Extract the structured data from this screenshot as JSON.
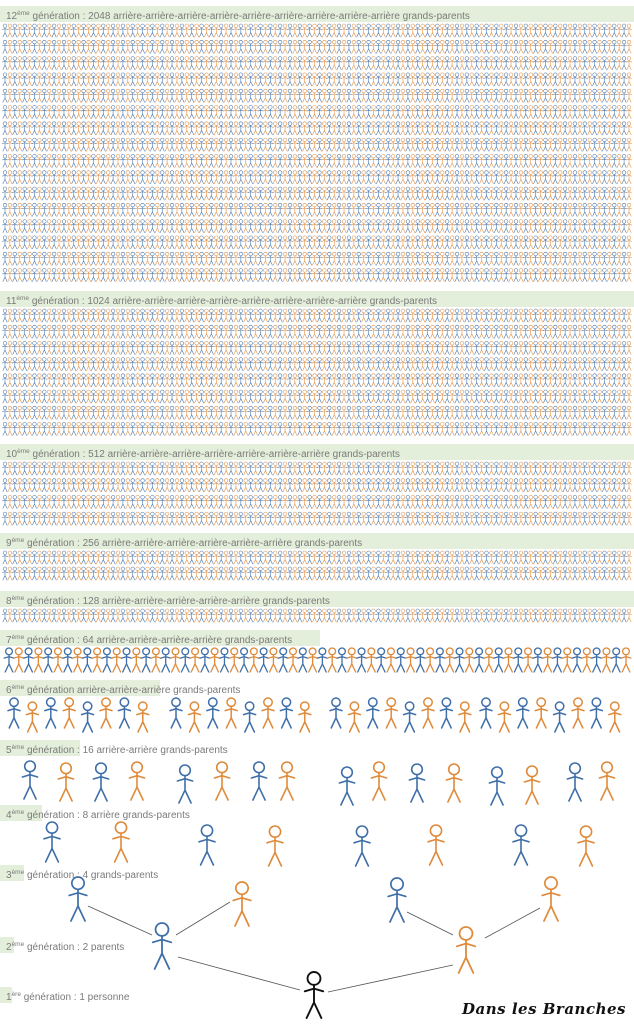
{
  "colors": {
    "blue": "#3f6fa8",
    "orange": "#df8a3a",
    "black": "#111111",
    "band": "#e4efdb",
    "label": "#7a7a7a",
    "line": "#555555"
  },
  "generations": [
    {
      "num": "12",
      "sup": "ème",
      "text": " génération : 2048 arrière-arrière-arrière-arrière-arrière-arrière-arrière-arrière-arrière grands-parents",
      "count": 2048
    },
    {
      "num": "11",
      "sup": "ème",
      "text": " génération : 1024 arrière-arrière-arrière-arrière-arrière-arrière-arrière-arrière grands-parents",
      "count": 1024
    },
    {
      "num": "10",
      "sup": "ème",
      "text": " génération : 512 arrière-arrière-arrière-arrière-arrière-arrière-arrière grands-parents",
      "count": 512
    },
    {
      "num": "9",
      "sup": "ème",
      "text": " génération : 256 arrière-arrière-arrière-arrière-arrière-arrière grands-parents",
      "count": 256
    },
    {
      "num": "8",
      "sup": "ème",
      "text": " génération : 128 arrière-arrière-arrière-arrière-arrière grands-parents",
      "count": 128
    },
    {
      "num": "7",
      "sup": "ème",
      "text": " génération : 64 arrière-arrière-arrière-arrière grands-parents",
      "count": 64
    },
    {
      "num": "6",
      "sup": "ème",
      "text": " génération arrière-arrière-arrière grands-parents",
      "count": 32
    },
    {
      "num": "5",
      "sup": "ème",
      "text": " génération : 16 arrière-arrière grands-parents",
      "count": 16
    },
    {
      "num": "4",
      "sup": "ème",
      "text": " génération : 8 arrière grands-parents",
      "count": 8
    },
    {
      "num": "3",
      "sup": "ème",
      "text": " génération : 4 grands-parents",
      "count": 4
    },
    {
      "num": "2",
      "sup": "ème",
      "text": " génération : 2 parents",
      "count": 2
    },
    {
      "num": "1",
      "sup": "ère",
      "text": " génération : 1 personne",
      "count": 1
    }
  ],
  "brand": "Dans les Branches"
}
